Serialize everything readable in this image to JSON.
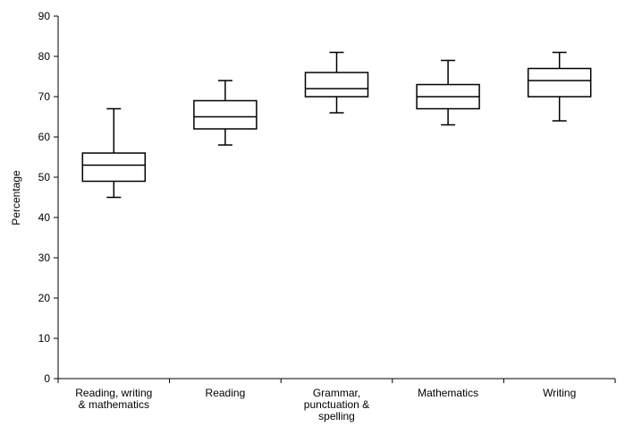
{
  "chart_data": {
    "type": "boxplot",
    "title": "",
    "xlabel": "",
    "ylabel": "Percentage",
    "ylim": [
      0,
      90
    ],
    "yticks": [
      0,
      10,
      20,
      30,
      40,
      50,
      60,
      70,
      80,
      90
    ],
    "grid": false,
    "categories": [
      {
        "label_lines": [
          "Reading, writing",
          "& mathematics"
        ],
        "min": 45,
        "q1": 49,
        "median": 53,
        "q3": 56,
        "max": 67
      },
      {
        "label_lines": [
          "Reading"
        ],
        "min": 58,
        "q1": 62,
        "median": 65,
        "q3": 69,
        "max": 74
      },
      {
        "label_lines": [
          "Grammar,",
          "punctuation &",
          "spelling"
        ],
        "min": 66,
        "q1": 70,
        "median": 72,
        "q3": 76,
        "max": 81
      },
      {
        "label_lines": [
          "Mathematics"
        ],
        "min": 63,
        "q1": 67,
        "median": 70,
        "q3": 73,
        "max": 79
      },
      {
        "label_lines": [
          "Writing"
        ],
        "min": 64,
        "q1": 70,
        "median": 74,
        "q3": 77,
        "max": 81
      }
    ],
    "colors": {
      "box_fill": "#ffffff",
      "stroke": "#000000"
    }
  }
}
